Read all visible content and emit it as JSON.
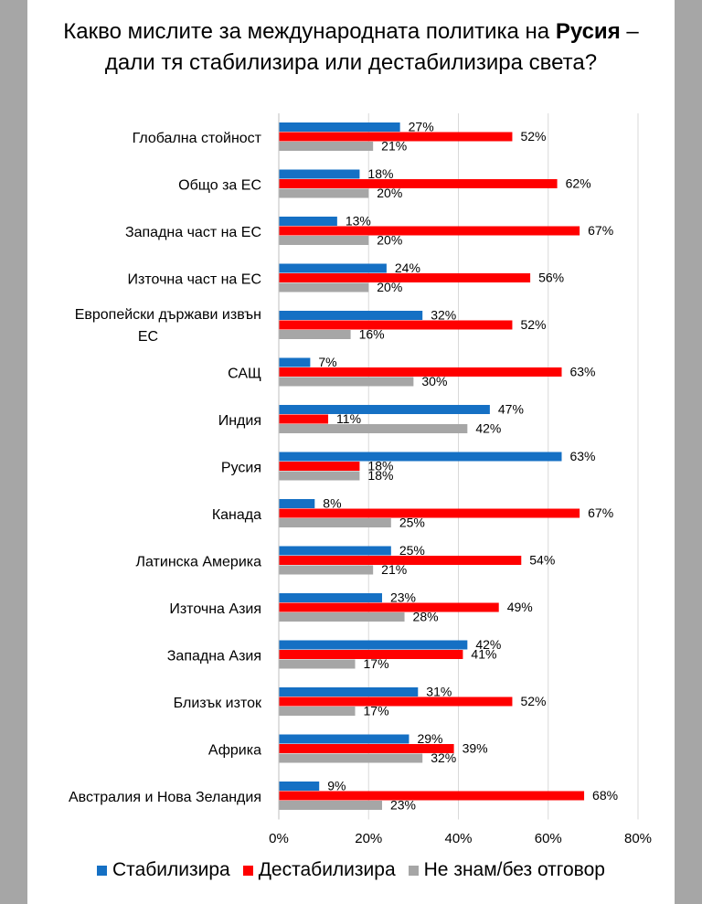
{
  "title": {
    "line1_before": "Какво мислите за международната политика на ",
    "line1_bold": "Русия",
    "line1_after": " –",
    "line2": "дали тя стабилизира или дестабилизира света?"
  },
  "colors": {
    "stabilize": "#1570c4",
    "destabilize": "#ff0000",
    "dontknow": "#a6a6a6",
    "grid": "#d9d9d9",
    "background": "#a6a6a6"
  },
  "chart_data": {
    "type": "bar",
    "orientation": "horizontal",
    "title": "Какво мислите за международната политика на Русия – дали тя стабилизира или дестабилизира света?",
    "categories": [
      "Глобална стойност",
      "Общо за ЕС",
      "Западна част на ЕС",
      "Източна част на ЕС",
      "Европейски държави извън ЕС",
      "САЩ",
      "Индия",
      "Русия",
      "Канада",
      "Латинска Америка",
      "Източна Азия",
      "Западна Азия",
      "Близък изток",
      "Африка",
      "Австралия и Нова Зеландия"
    ],
    "category_lines": [
      [
        "Глобална стойност"
      ],
      [
        "Общо за ЕС"
      ],
      [
        "Западна част на ЕС"
      ],
      [
        "Източна част на ЕС"
      ],
      [
        "Европейски държави извън",
        "ЕС"
      ],
      [
        "САЩ"
      ],
      [
        "Индия"
      ],
      [
        "Русия"
      ],
      [
        "Канада"
      ],
      [
        "Латинска Америка"
      ],
      [
        "Източна Азия"
      ],
      [
        "Западна Азия"
      ],
      [
        "Близък изток"
      ],
      [
        "Африка"
      ],
      [
        "Австралия и Нова Зеландия"
      ]
    ],
    "series": [
      {
        "name": "Стабилизира",
        "color_key": "stabilize",
        "values": [
          27,
          18,
          13,
          24,
          32,
          7,
          47,
          63,
          8,
          25,
          23,
          42,
          31,
          29,
          9
        ]
      },
      {
        "name": "Дестабилизира",
        "color_key": "destabilize",
        "values": [
          52,
          62,
          67,
          56,
          52,
          63,
          11,
          18,
          67,
          54,
          49,
          41,
          52,
          39,
          68
        ]
      },
      {
        "name": "Не знам/без отговор",
        "color_key": "dontknow",
        "values": [
          21,
          20,
          20,
          20,
          16,
          30,
          42,
          18,
          25,
          21,
          28,
          17,
          17,
          32,
          23
        ]
      }
    ],
    "xlim": [
      0,
      80
    ],
    "xticks": [
      "0%",
      "20%",
      "40%",
      "60%",
      "80%"
    ],
    "value_suffix": "%",
    "grid": true,
    "legend_position": "bottom"
  },
  "legend": {
    "items": [
      "Стабилизира",
      "Дестабилизира",
      "Не знам/без отговор"
    ]
  }
}
